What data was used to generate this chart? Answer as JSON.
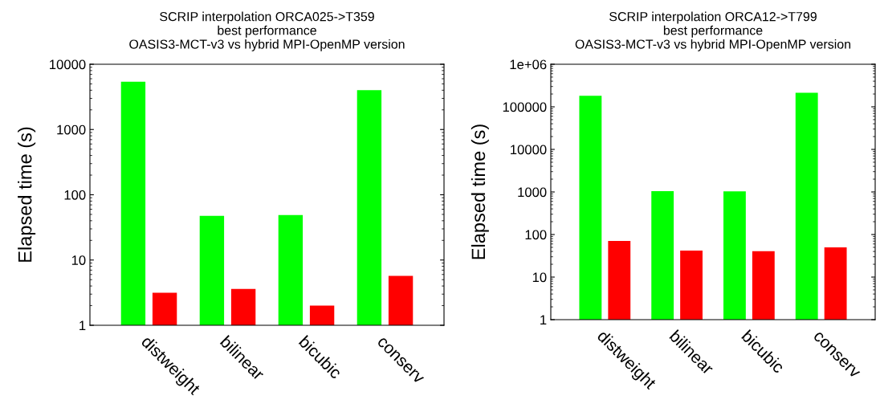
{
  "chart_data": [
    {
      "type": "bar",
      "title": "SCRIP interpolation ORCA025->T359\nbest performance\nOASIS3-MCT-v3 vs hybrid MPI-OpenMP version",
      "ylabel": "Elapsed time (s)",
      "categories": [
        "distweight",
        "bilinear",
        "bicubic",
        "conserv"
      ],
      "series": [
        {
          "color": "#00ff00",
          "values": [
            5400,
            47.5,
            49,
            4000
          ]
        },
        {
          "color": "#ff0000",
          "values": [
            3.15,
            3.6,
            2.0,
            5.7
          ]
        }
      ],
      "log": "y",
      "ylim": [
        1,
        10000
      ],
      "yticks": [
        1,
        10,
        100,
        1000,
        10000
      ],
      "grid": false,
      "legend": false
    },
    {
      "type": "bar",
      "title": "SCRIP interpolation ORCA12->T799\nbest performance\nOASIS3-MCT-v3 vs hybrid MPI-OpenMP version",
      "ylabel": "Elapsed time (s)",
      "categories": [
        "distweight",
        "bilinear",
        "bicubic",
        "conserv"
      ],
      "series": [
        {
          "color": "#00ff00",
          "values": [
            182000,
            1050,
            1030,
            215000
          ]
        },
        {
          "color": "#ff0000",
          "values": [
            71,
            42,
            40.5,
            50
          ]
        }
      ],
      "log": "y",
      "ylim": [
        1,
        1000000
      ],
      "yticks": [
        1,
        10,
        100,
        1000,
        10000,
        100000,
        {
          "value": 1000000,
          "label": "1e+06"
        }
      ],
      "grid": false,
      "legend": false
    }
  ]
}
